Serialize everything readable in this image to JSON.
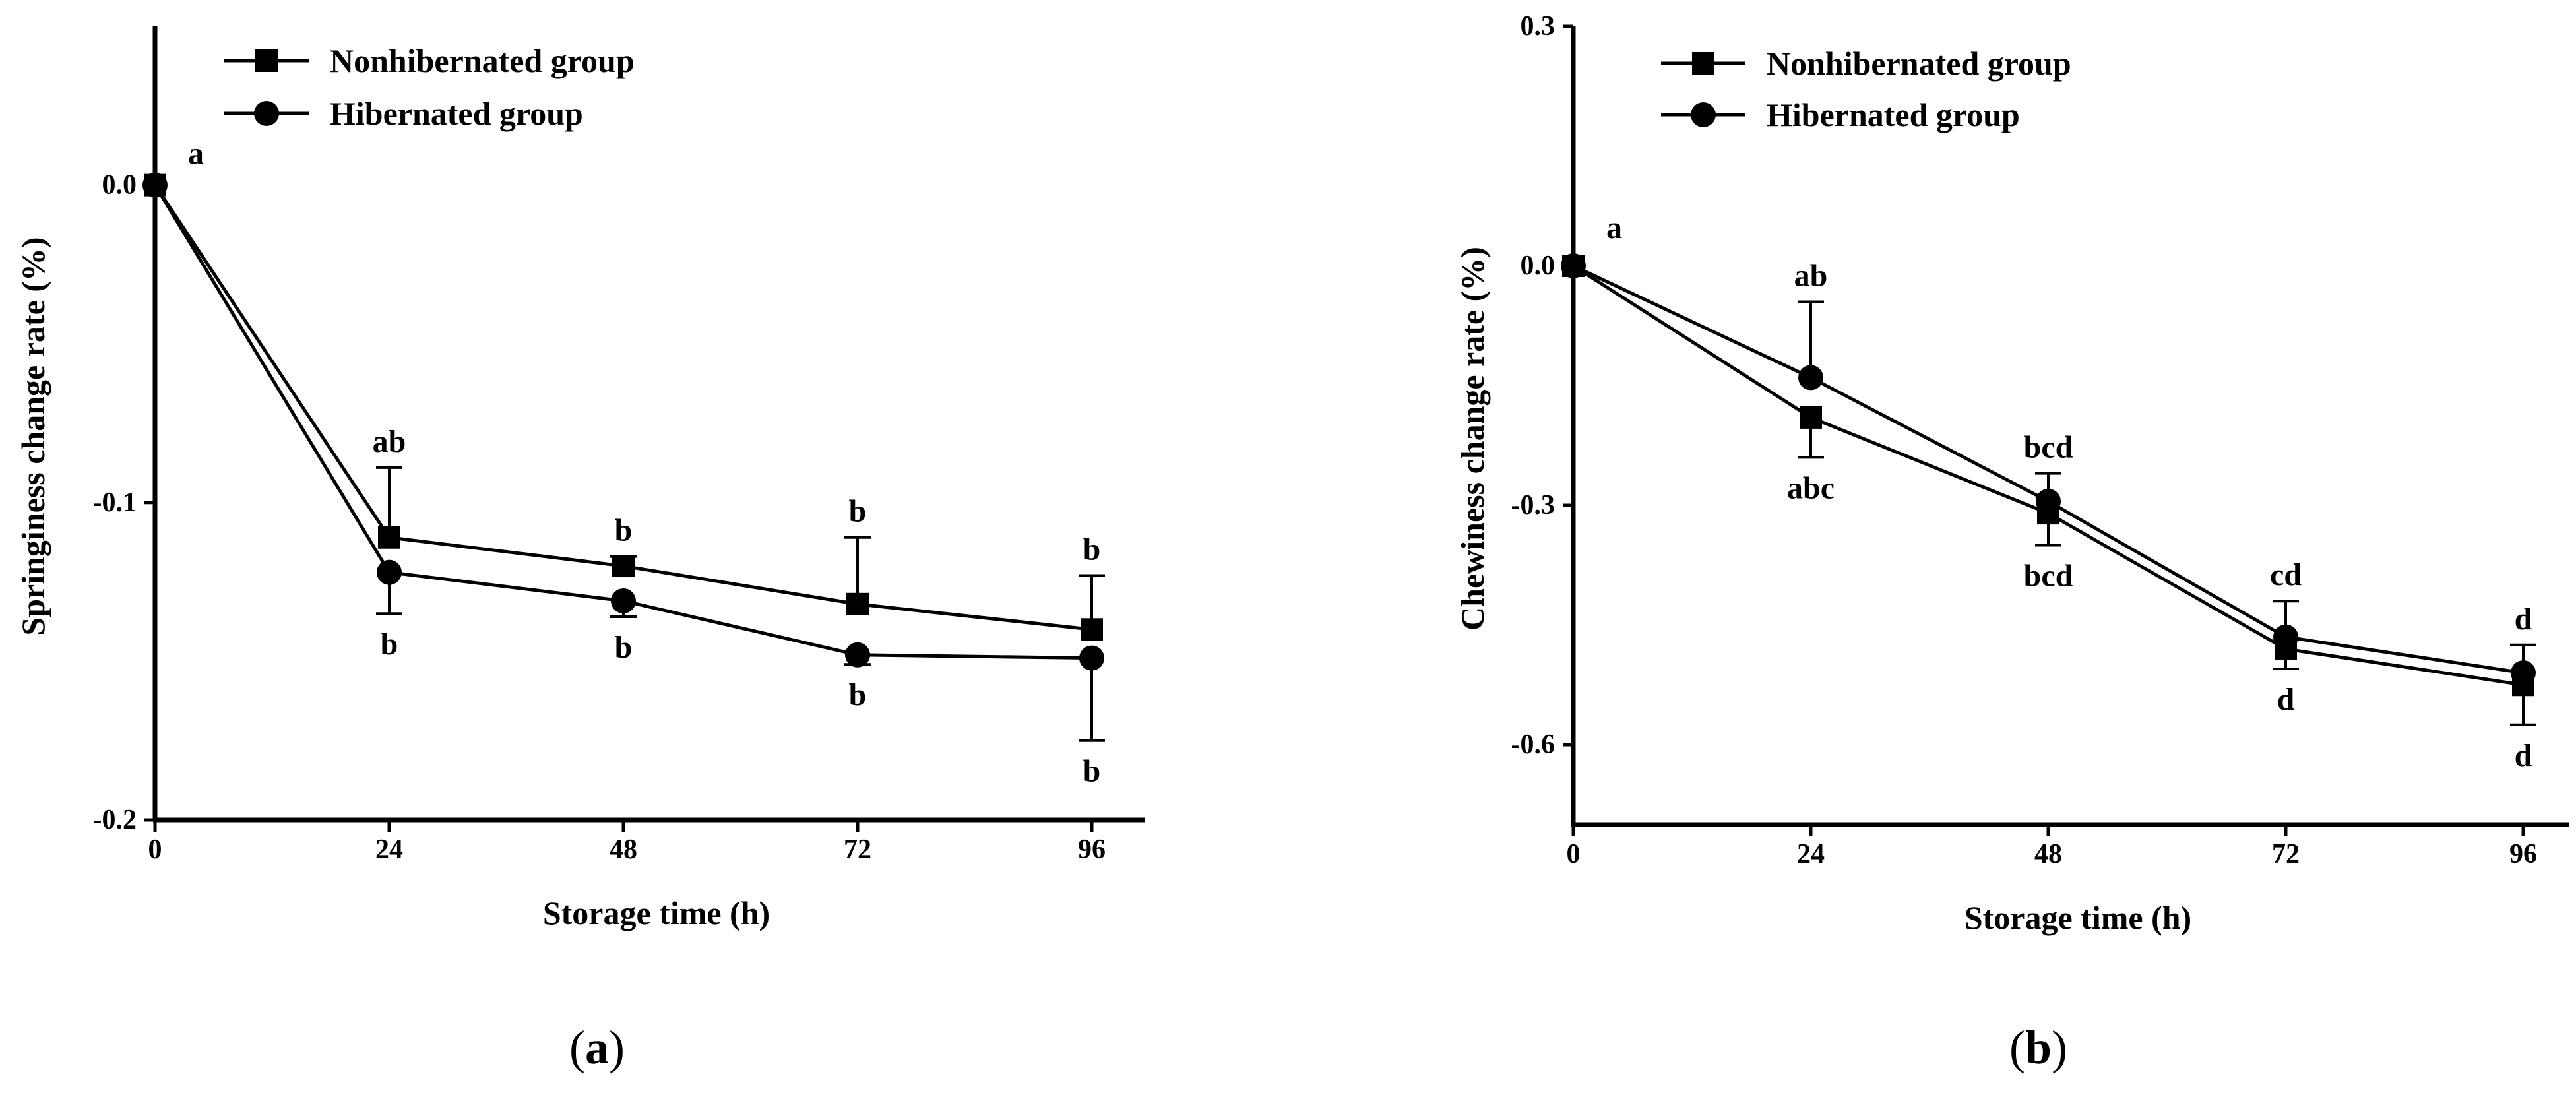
{
  "chart_data": [
    {
      "type": "line",
      "panel_label": "a",
      "title": "",
      "xlabel": "Storage time (h)",
      "ylabel": "Springiness change rate (%)",
      "xlim": [
        0,
        96
      ],
      "ylim": [
        -0.2,
        0.05
      ],
      "xticks": [
        0,
        24,
        48,
        72,
        96
      ],
      "xtick_labels": [
        "0",
        "24",
        "48",
        "72",
        "96"
      ],
      "yticks": [
        0.0,
        -0.1,
        -0.2
      ],
      "ytick_labels": [
        "0.0",
        "-0.1",
        "-0.2"
      ],
      "grid": false,
      "legend_position": "top-left",
      "x": [
        0,
        24,
        48,
        72,
        96
      ],
      "series": [
        {
          "name": "Nonhibernated group",
          "marker": "square",
          "values": [
            0.0,
            -0.111,
            -0.12,
            -0.132,
            -0.14
          ],
          "errors": [
            0.0,
            0.022,
            0.003,
            0.021,
            0.017
          ],
          "labels": [
            "a",
            "ab",
            "b",
            "b",
            "b"
          ],
          "label_side": "above"
        },
        {
          "name": "Hibernated group",
          "marker": "circle",
          "values": [
            0.0,
            -0.122,
            -0.131,
            -0.148,
            -0.149
          ],
          "errors": [
            0.0,
            0.013,
            0.005,
            0.003,
            0.026
          ],
          "labels": [
            "",
            "b",
            "b",
            "b",
            "b"
          ],
          "label_side": "below"
        }
      ]
    },
    {
      "type": "line",
      "panel_label": "b",
      "title": "",
      "xlabel": "Storage time (h)",
      "ylabel": "Chewiness change rate (%)",
      "xlim": [
        0,
        96
      ],
      "ylim": [
        -0.7,
        0.3
      ],
      "xticks": [
        0,
        24,
        48,
        72,
        96
      ],
      "xtick_labels": [
        "0",
        "24",
        "48",
        "72",
        "96"
      ],
      "yticks": [
        0.3,
        0.0,
        -0.3,
        -0.6
      ],
      "ytick_labels": [
        "0.3",
        "0.0",
        "-0.3",
        "-0.6"
      ],
      "grid": false,
      "legend_position": "top-left",
      "x": [
        0,
        24,
        48,
        72,
        96
      ],
      "series": [
        {
          "name": "Nonhibernated group",
          "marker": "square",
          "values": [
            0.0,
            -0.19,
            -0.31,
            -0.48,
            -0.525
          ],
          "errors": [
            0.0,
            0.05,
            0.04,
            0.025,
            0.05
          ],
          "labels": [
            "a",
            "abc",
            "bcd",
            "d",
            "d"
          ],
          "label_side": "below"
        },
        {
          "name": "Hibernated group",
          "marker": "circle",
          "values": [
            0.0,
            -0.14,
            -0.295,
            -0.465,
            -0.51
          ],
          "errors": [
            0.0,
            0.095,
            0.035,
            0.045,
            0.035
          ],
          "labels": [
            "",
            "ab",
            "bcd",
            "cd",
            "d"
          ],
          "label_side": "above"
        }
      ]
    }
  ]
}
